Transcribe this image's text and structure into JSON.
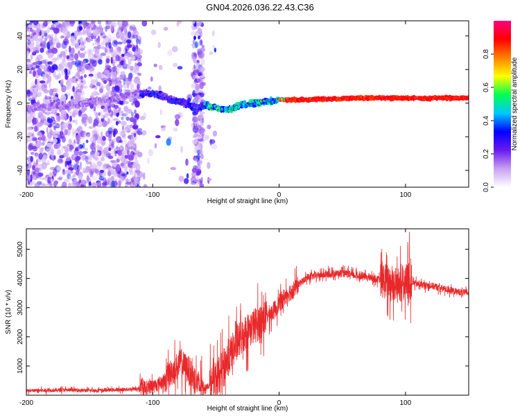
{
  "title": "GN04.2026.036.22.43.C36",
  "colors": {
    "snr_line": "#e8282a",
    "frame": "#000000",
    "background": "#ffffff"
  },
  "chart_data": [
    {
      "type": "heatmap",
      "name": "spectrogram",
      "xlabel": "Height of straight line (km)",
      "ylabel": "Frequency (Hz)",
      "xlim": [
        -200,
        150
      ],
      "ylim": [
        -50,
        49
      ],
      "xticks": [
        -200,
        -100,
        0,
        100
      ],
      "yticks": [
        -40,
        -20,
        0,
        20,
        40
      ],
      "colorbar": {
        "label": "Normalized spectral amplitude",
        "range": [
          0.0,
          1.0
        ],
        "ticks": [
          0.0,
          0.2,
          0.4,
          0.6,
          0.8
        ],
        "tick_labels": [
          "0.0",
          "0.2",
          "0.4",
          "0.6",
          "0.8"
        ],
        "colormap": [
          "#ffffff",
          "#c8a0f0",
          "#6a1bf0",
          "#0000ff",
          "#00c8ff",
          "#00ff50",
          "#ffff00",
          "#ff8000",
          "#ff0000",
          "#ff0080"
        ]
      },
      "ridge_frequency_hz": [
        {
          "x": -200,
          "y": -3
        },
        {
          "x": -180,
          "y": -2
        },
        {
          "x": -160,
          "y": -1
        },
        {
          "x": -140,
          "y": 2
        },
        {
          "x": -120,
          "y": 4
        },
        {
          "x": -105,
          "y": 6
        },
        {
          "x": -95,
          "y": 5
        },
        {
          "x": -85,
          "y": 2
        },
        {
          "x": -75,
          "y": 0
        },
        {
          "x": -65,
          "y": -3
        },
        {
          "x": -58,
          "y": -1
        },
        {
          "x": -50,
          "y": -3
        },
        {
          "x": -40,
          "y": -4
        },
        {
          "x": -30,
          "y": -1
        },
        {
          "x": -20,
          "y": 0
        },
        {
          "x": -10,
          "y": 1
        },
        {
          "x": 0,
          "y": 2
        },
        {
          "x": 20,
          "y": 2
        },
        {
          "x": 60,
          "y": 3
        },
        {
          "x": 100,
          "y": 3
        },
        {
          "x": 150,
          "y": 3
        }
      ]
    },
    {
      "type": "line",
      "name": "snr",
      "xlabel": "Height of straight line (km)",
      "ylabel": "SNR (10 * v/v)",
      "xlim": [
        -200,
        150
      ],
      "ylim": [
        0,
        5700
      ],
      "xticks": [
        -200,
        -100,
        0,
        100
      ],
      "yticks": [
        1000,
        2000,
        3000,
        4000,
        5000
      ],
      "series": [
        {
          "name": "SNR",
          "x": [
            -200,
            -190,
            -180,
            -170,
            -160,
            -150,
            -140,
            -130,
            -120,
            -110,
            -100,
            -92,
            -85,
            -78,
            -72,
            -66,
            -62,
            -58,
            -52,
            -46,
            -40,
            -34,
            -28,
            -22,
            -16,
            -10,
            -4,
            0,
            6,
            12,
            18,
            24,
            30,
            40,
            50,
            60,
            70,
            80,
            85,
            90,
            95,
            100,
            105,
            110,
            120,
            130,
            140,
            150
          ],
          "y": [
            150,
            160,
            170,
            180,
            170,
            160,
            170,
            180,
            200,
            230,
            300,
            450,
            800,
            1100,
            900,
            500,
            250,
            260,
            450,
            800,
            1300,
            1700,
            2100,
            2300,
            2500,
            2700,
            2900,
            3150,
            3450,
            3650,
            3900,
            4050,
            4100,
            4150,
            4180,
            4100,
            4050,
            3950,
            3900,
            3850,
            3750,
            3900,
            3850,
            3800,
            3750,
            3650,
            3550,
            3500
          ]
        }
      ]
    }
  ]
}
